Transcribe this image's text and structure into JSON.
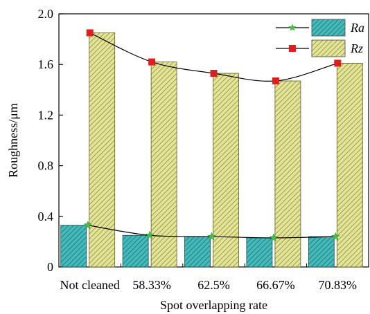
{
  "chart_data": {
    "type": "bar",
    "xlabel": "Spot overlapping rate",
    "ylabel": "Roughness/μm",
    "categories": [
      "Not cleaned",
      "58.33%",
      "62.5%",
      "66.67%",
      "70.83%"
    ],
    "ylim": [
      0,
      2.0
    ],
    "yticks": [
      "0",
      "0.4",
      "0.8",
      "1.2",
      "1.6",
      "2.0"
    ],
    "series": [
      {
        "name": "Ra",
        "values": [
          0.33,
          0.25,
          0.24,
          0.23,
          0.24
        ],
        "bar_color": "#3fb5b5",
        "line_color": "#000000",
        "marker": "star",
        "marker_color": "#43c043"
      },
      {
        "name": "Rz",
        "values": [
          1.85,
          1.62,
          1.53,
          1.47,
          1.61
        ],
        "bar_color": "#dede8a",
        "line_color": "#000000",
        "marker": "square",
        "marker_color": "#e01e1e"
      }
    ],
    "legend_position": "top-right",
    "grid": false
  }
}
